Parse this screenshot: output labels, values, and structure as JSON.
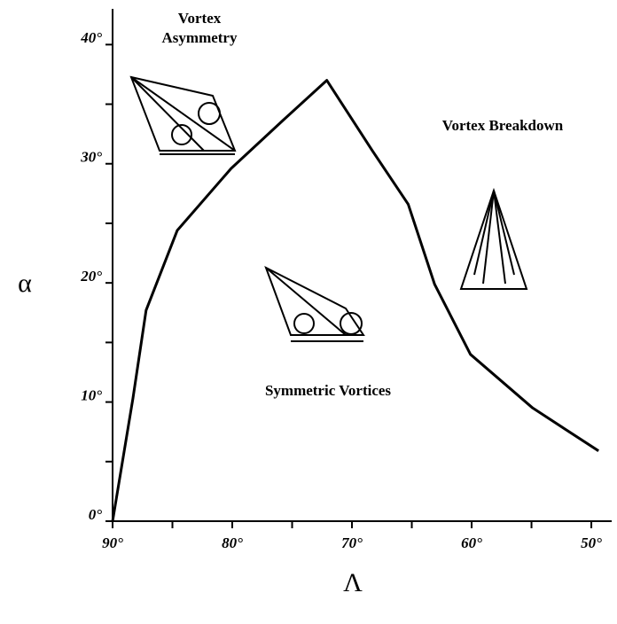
{
  "chart_data": {
    "type": "line",
    "x_label": "Λ",
    "y_label": "α",
    "annotations": [
      "Vortex",
      "Asymmetry",
      "Vortex Breakdown",
      "Symmetric Vortices"
    ],
    "x": [
      90,
      88.3,
      87.2,
      84.6,
      80.1,
      75.7,
      72.1,
      68.3,
      65.3,
      63.1,
      60.1,
      54.9,
      49.4
    ],
    "series": [
      {
        "color": "#000000",
        "values": [
          0,
          10.3,
          17.7,
          24.4,
          29.6,
          33.7,
          37,
          31.1,
          26.6,
          19.9,
          14,
          9.5,
          5.9
        ]
      }
    ],
    "xlim": [
      90,
      48.3
    ],
    "ylim": [
      0,
      43
    ],
    "xticks": [
      {
        "value": 90,
        "label": "90°"
      },
      {
        "value": 80,
        "label": "80°"
      },
      {
        "value": 70,
        "label": "70°"
      },
      {
        "value": 60,
        "label": "60°"
      },
      {
        "value": 50,
        "label": "50°"
      }
    ],
    "xminorticks": [
      85,
      75,
      65,
      55
    ],
    "yticks": [
      {
        "value": 0,
        "label": "0°"
      },
      {
        "value": 10,
        "label": "10°"
      },
      {
        "value": 20,
        "label": "20°"
      },
      {
        "value": 30,
        "label": "30°"
      },
      {
        "value": 40,
        "label": "40°"
      }
    ],
    "yminorticks": [
      5,
      15,
      25,
      35
    ]
  }
}
